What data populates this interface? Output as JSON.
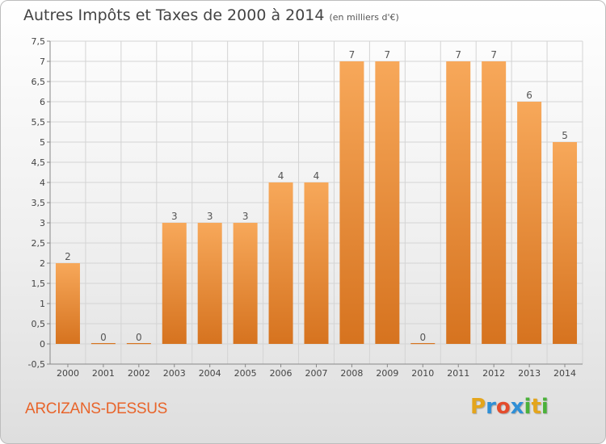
{
  "title": "Autres Impôts et Taxes de 2000 à 2014",
  "subtitle": "(en milliers d'€)",
  "location": "ARCIZANS-DESSUS",
  "logo": {
    "letters": [
      "P",
      "r",
      "o",
      "x",
      "i",
      "t",
      "i"
    ],
    "colors": [
      "#e4a51c",
      "#2f8fd6",
      "#e44c2c",
      "#2f8fd6",
      "#4bb13a",
      "#e4a51c",
      "#4bb13a"
    ]
  },
  "colors": {
    "bar_light": "#f7a85a",
    "bar_dark": "#d6731f",
    "grid": "#d4d4d4",
    "location": "#e8642a"
  },
  "chart_data": {
    "type": "bar",
    "categories": [
      "2000",
      "2001",
      "2002",
      "2003",
      "2004",
      "2005",
      "2006",
      "2007",
      "2008",
      "2009",
      "2010",
      "2011",
      "2012",
      "2013",
      "2014"
    ],
    "values": [
      2,
      0,
      0,
      3,
      3,
      3,
      4,
      4,
      7,
      7,
      0,
      7,
      7,
      6,
      5
    ],
    "data_labels": [
      "2",
      "0",
      "0",
      "3",
      "3",
      "3",
      "4",
      "4",
      "7",
      "7",
      "0",
      "7",
      "7",
      "6",
      "5"
    ],
    "yticks": [
      "-0,5",
      "0",
      "0,5",
      "1",
      "1,5",
      "2",
      "2,5",
      "3",
      "3,5",
      "4",
      "4,5",
      "5",
      "5,5",
      "6",
      "6,5",
      "7",
      "7,5"
    ],
    "ytick_values": [
      -0.5,
      0,
      0.5,
      1,
      1.5,
      2,
      2.5,
      3,
      3.5,
      4,
      4.5,
      5,
      5.5,
      6,
      6.5,
      7,
      7.5
    ],
    "ylim": [
      -0.5,
      7.5
    ],
    "grid": true
  }
}
